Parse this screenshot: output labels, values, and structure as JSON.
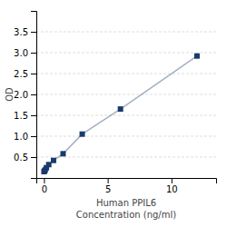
{
  "chart_data": {
    "type": "line",
    "x": [
      0.0,
      0.047,
      0.094,
      0.188,
      0.375,
      0.75,
      1.5,
      3.0,
      6.0,
      12.0
    ],
    "values": [
      0.152,
      0.168,
      0.192,
      0.245,
      0.32,
      0.42,
      0.58,
      1.05,
      1.65,
      2.92
    ],
    "color": "#1a3a6b",
    "marker": "square",
    "x_label": [
      "Human PPIL6",
      "Concentration (ng/ml)"
    ],
    "y_label": "OD",
    "xlim": [
      -0.6,
      13.5
    ],
    "ylim": [
      0.0,
      4.0
    ],
    "xticks": [
      0,
      5,
      10
    ],
    "yticks": [
      0.5,
      {
        "value": 1.0,
        "label": "1.0"
      },
      1.5,
      {
        "value": 2.0,
        "label": "2.0"
      },
      2.5,
      {
        "value": 3.0,
        "label": "3.0"
      },
      3.5
    ],
    "grid": true
  }
}
